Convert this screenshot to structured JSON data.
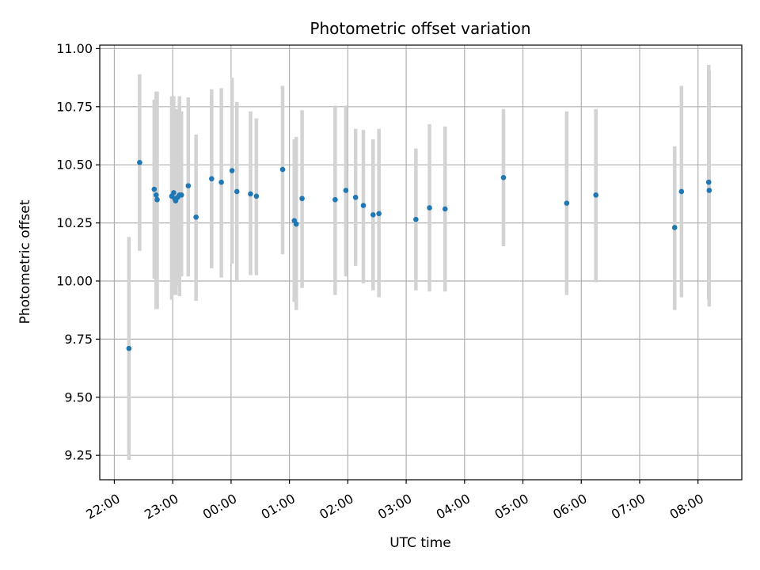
{
  "chart_data": {
    "type": "scatter",
    "title": "Photometric offset variation",
    "xlabel": "UTC time",
    "ylabel": "Photometric offset",
    "x_unit": "minutes relative to 00:00 UTC",
    "xlim": [
      -1530,
      1910
    ],
    "ylim": [
      9.145,
      11.015
    ],
    "grid": true,
    "xticks": [
      {
        "value": -120,
        "label": "22:00"
      },
      {
        "value": -60,
        "label": "23:00"
      },
      {
        "value": 0,
        "label": "00:00"
      },
      {
        "value": 60,
        "label": "01:00"
      },
      {
        "value": 120,
        "label": "02:00"
      },
      {
        "value": 180,
        "label": "03:00"
      },
      {
        "value": 240,
        "label": "04:00"
      },
      {
        "value": 300,
        "label": "05:00"
      },
      {
        "value": 360,
        "label": "06:00"
      },
      {
        "value": 420,
        "label": "07:00"
      },
      {
        "value": 480,
        "label": "08:00"
      }
    ],
    "yticks": [
      {
        "value": 9.25,
        "label": "9.25"
      },
      {
        "value": 9.5,
        "label": "9.50"
      },
      {
        "value": 9.75,
        "label": "9.75"
      },
      {
        "value": 10.0,
        "label": "10.00"
      },
      {
        "value": 10.25,
        "label": "10.25"
      },
      {
        "value": 10.5,
        "label": "10.50"
      },
      {
        "value": 10.75,
        "label": "10.75"
      },
      {
        "value": 11.0,
        "label": "11.00"
      }
    ],
    "marker_color": "#1f77b4",
    "errorbar_color": "#d3d3d3",
    "points": [
      {
        "x": -105,
        "y": 9.71,
        "low": 9.23,
        "high": 10.19
      },
      {
        "x": -94,
        "y": 10.51,
        "low": 10.13,
        "high": 10.89
      },
      {
        "x": -79,
        "y": 10.395,
        "low": 10.01,
        "high": 10.78
      },
      {
        "x": -77,
        "y": 10.37,
        "low": 9.88,
        "high": 10.815
      },
      {
        "x": -76,
        "y": 10.35,
        "low": 9.88,
        "high": 10.815
      },
      {
        "x": -61,
        "y": 10.365,
        "low": 9.92,
        "high": 10.795
      },
      {
        "x": -59,
        "y": 10.38,
        "low": 9.94,
        "high": 10.795
      },
      {
        "x": -58,
        "y": 10.355,
        "low": 9.95,
        "high": 10.74
      },
      {
        "x": -57,
        "y": 10.345,
        "low": 9.94,
        "high": 10.69
      },
      {
        "x": -55,
        "y": 10.36,
        "low": 9.98,
        "high": 10.74
      },
      {
        "x": -53,
        "y": 10.37,
        "low": 9.935,
        "high": 10.795
      },
      {
        "x": -51,
        "y": 10.37,
        "low": 10.02,
        "high": 10.73
      },
      {
        "x": -44,
        "y": 10.41,
        "low": 10.02,
        "high": 10.79
      },
      {
        "x": -36,
        "y": 10.275,
        "low": 9.915,
        "high": 10.63
      },
      {
        "x": -20,
        "y": 10.44,
        "low": 10.055,
        "high": 10.825
      },
      {
        "x": -10,
        "y": 10.425,
        "low": 10.015,
        "high": 10.83
      },
      {
        "x": 1,
        "y": 10.475,
        "low": 10.075,
        "high": 10.875
      },
      {
        "x": 6,
        "y": 10.385,
        "low": 10.0,
        "high": 10.77
      },
      {
        "x": 20,
        "y": 10.375,
        "low": 10.025,
        "high": 10.73
      },
      {
        "x": 26,
        "y": 10.365,
        "low": 10.025,
        "high": 10.7
      },
      {
        "x": 53,
        "y": 10.48,
        "low": 10.115,
        "high": 10.84
      },
      {
        "x": 65,
        "y": 10.26,
        "low": 9.91,
        "high": 10.61
      },
      {
        "x": 67,
        "y": 10.245,
        "low": 9.875,
        "high": 10.62
      },
      {
        "x": 73,
        "y": 10.355,
        "low": 9.97,
        "high": 10.735
      },
      {
        "x": 107,
        "y": 10.35,
        "low": 9.94,
        "high": 10.755
      },
      {
        "x": 118,
        "y": 10.39,
        "low": 10.02,
        "high": 10.755
      },
      {
        "x": 128,
        "y": 10.36,
        "low": 10.065,
        "high": 10.655
      },
      {
        "x": 136,
        "y": 10.325,
        "low": 9.99,
        "high": 10.65
      },
      {
        "x": 146,
        "y": 10.285,
        "low": 9.96,
        "high": 10.61
      },
      {
        "x": 152,
        "y": 10.29,
        "low": 9.93,
        "high": 10.655
      },
      {
        "x": 190,
        "y": 10.265,
        "low": 9.96,
        "high": 10.57
      },
      {
        "x": 204,
        "y": 10.315,
        "low": 9.955,
        "high": 10.675
      },
      {
        "x": 220,
        "y": 10.31,
        "low": 9.955,
        "high": 10.665
      },
      {
        "x": 280,
        "y": 10.445,
        "low": 10.15,
        "high": 10.74
      },
      {
        "x": 345,
        "y": 10.335,
        "low": 9.94,
        "high": 10.73
      },
      {
        "x": 375,
        "y": 10.37,
        "low": 9.995,
        "high": 10.74
      },
      {
        "x": 456,
        "y": 10.23,
        "low": 9.875,
        "high": 10.58
      },
      {
        "x": 463,
        "y": 10.385,
        "low": 9.93,
        "high": 10.84
      },
      {
        "x": 491,
        "y": 10.425,
        "low": 9.92,
        "high": 10.93
      },
      {
        "x": 491.5,
        "y": 10.39,
        "low": 9.89,
        "high": 10.905
      }
    ]
  }
}
